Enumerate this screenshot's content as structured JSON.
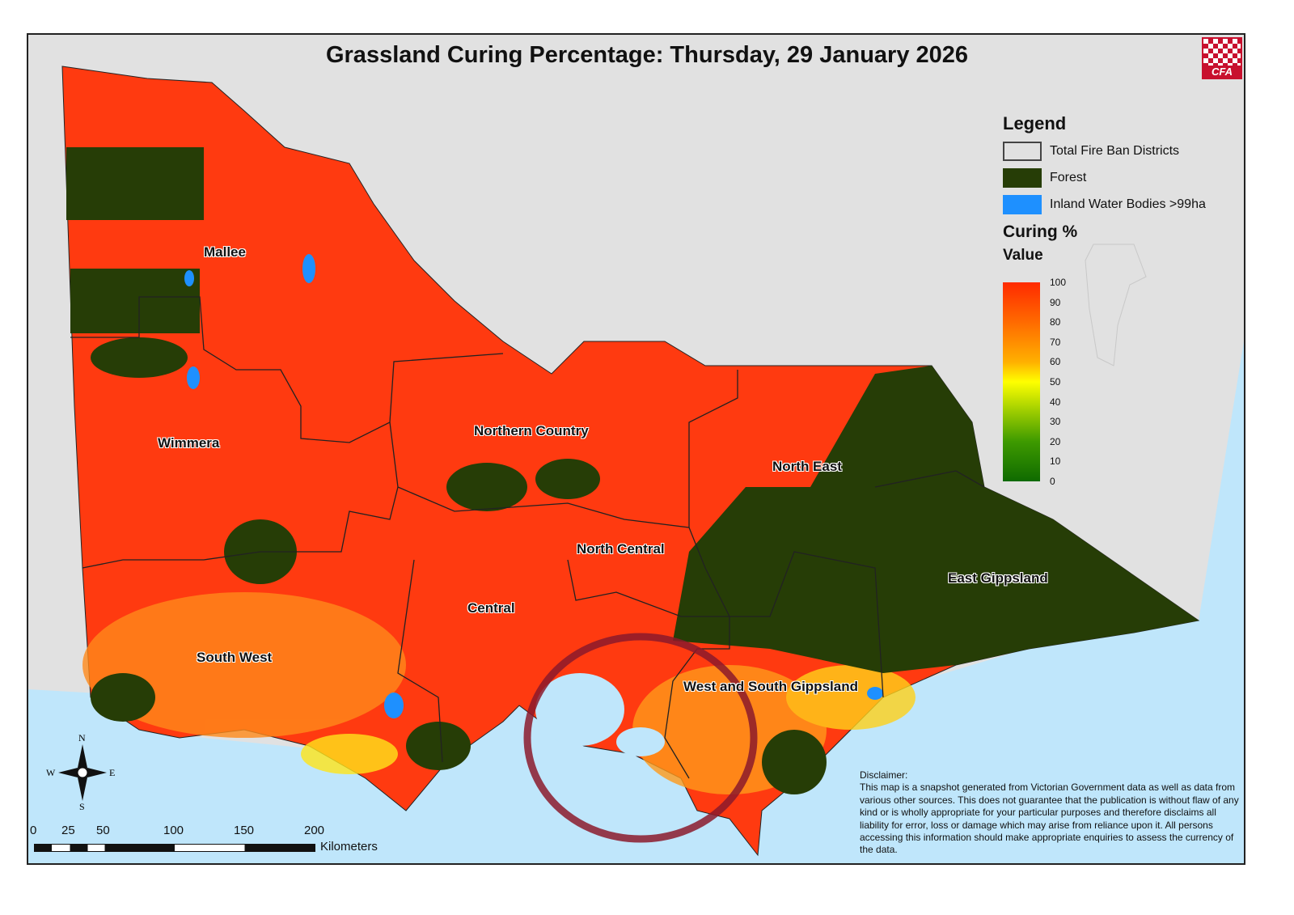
{
  "title": "Grassland Curing Percentage: Thursday, 29 January 2026",
  "logo": "CFA",
  "legend": {
    "heading": "Legend",
    "items": [
      {
        "label": "Total Fire Ban Districts",
        "color": "#e1e1e1"
      },
      {
        "label": "Forest",
        "color": "#263d06"
      },
      {
        "label": "Inland Water Bodies >99ha",
        "color": "#1e90ff"
      }
    ],
    "curing_heading": "Curing %",
    "value_heading": "Value",
    "ticks": [
      "100",
      "90",
      "80",
      "70",
      "60",
      "50",
      "40",
      "30",
      "20",
      "10",
      "0"
    ],
    "colors": {
      "high": "#ff2a00",
      "mid": "#ffff00",
      "low": "#0f6a00"
    }
  },
  "districts": [
    "Mallee",
    "Wimmera",
    "Northern Country",
    "North East",
    "North Central",
    "East Gippsland",
    "Central",
    "South West",
    "West and South Gippsland"
  ],
  "compass": {
    "n": "N",
    "s": "S",
    "e": "E",
    "w": "W"
  },
  "scale": {
    "ticks": [
      "0",
      "25",
      "50",
      "100",
      "150",
      "200"
    ],
    "unit": "Kilometers"
  },
  "disclaimer": {
    "heading": "Disclaimer:",
    "text": "This map is a snapshot generated from Victorian Government data as well as data from various other sources. This does not guarantee that the publication is without flaw of any kind or is wholly appropriate for your particular purposes and therefore disclaims all liability for error, loss or damage which may arise from reliance upon it. All persons accessing this information should make appropriate enquiries to assess the currency of the data."
  },
  "annotation": {
    "color": "#8b1a2b"
  }
}
